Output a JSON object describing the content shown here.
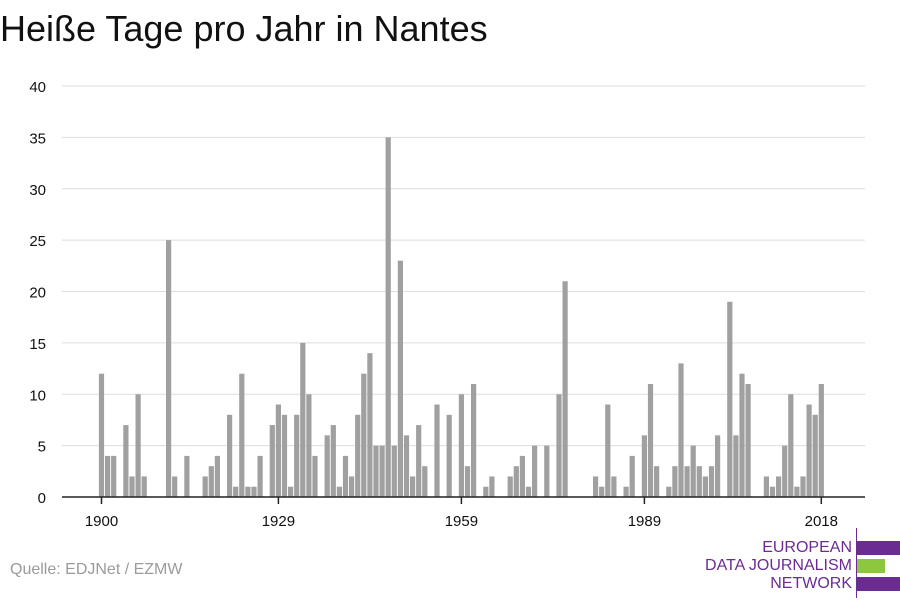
{
  "chart_data": {
    "type": "bar",
    "title": "Heiße Tage pro Jahr in Nantes",
    "x_start": 1900,
    "x_end": 2018,
    "xticks": [
      1900,
      1929,
      1959,
      1989,
      2018
    ],
    "yticks": [
      0,
      5,
      10,
      15,
      20,
      25,
      30,
      35,
      40
    ],
    "ylim": [
      0,
      40
    ],
    "grid": "horizontal",
    "bar_color": "#a0a0a0",
    "values": [
      12,
      4,
      4,
      0,
      7,
      2,
      10,
      2,
      0,
      0,
      0,
      25,
      2,
      0,
      4,
      0,
      0,
      2,
      3,
      4,
      0,
      8,
      1,
      12,
      1,
      1,
      4,
      0,
      7,
      9,
      8,
      1,
      8,
      15,
      10,
      4,
      0,
      6,
      7,
      1,
      4,
      2,
      8,
      12,
      14,
      5,
      5,
      35,
      5,
      23,
      6,
      2,
      7,
      3,
      0,
      9,
      0,
      8,
      0,
      10,
      3,
      11,
      0,
      1,
      2,
      0,
      0,
      2,
      3,
      4,
      1,
      5,
      0,
      5,
      0,
      10,
      21,
      0,
      0,
      0,
      0,
      2,
      1,
      9,
      2,
      0,
      1,
      4,
      0,
      6,
      11,
      3,
      0,
      1,
      3,
      13,
      3,
      5,
      3,
      2,
      3,
      6,
      0,
      19,
      6,
      12,
      11,
      0,
      0,
      2,
      1,
      2,
      5,
      10,
      1,
      2,
      9,
      8,
      11
    ]
  },
  "footer": {
    "source": "Quelle: EDJNet / EZMW"
  },
  "logo": {
    "line1": "EUROPEAN",
    "line2": "DATA JOURNALISM",
    "line3": "NETWORK",
    "purple": "#6b2c91",
    "green": "#8dc63f"
  }
}
